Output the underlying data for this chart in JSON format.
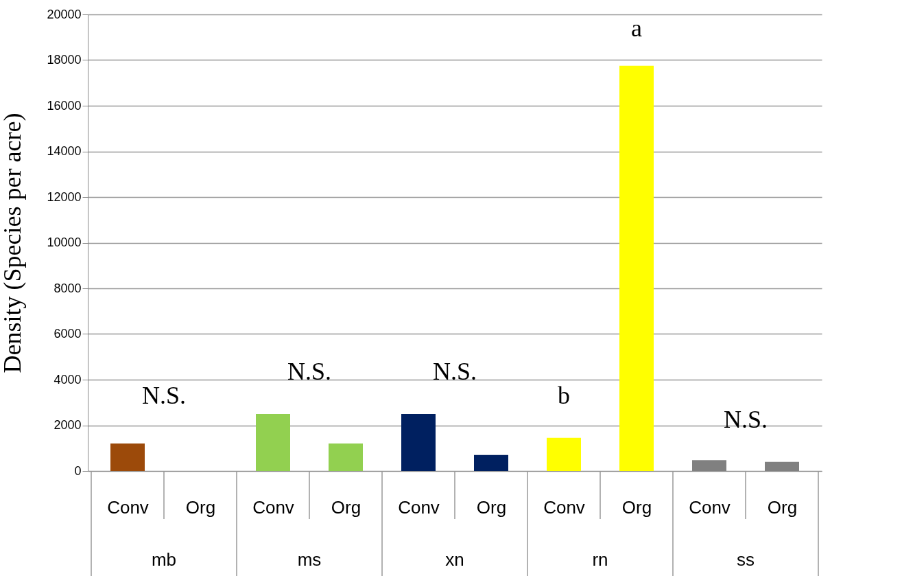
{
  "chart_data": {
    "type": "bar",
    "ylabel": "Density (Species per  acre)",
    "categories": [
      "Conv",
      "Org",
      "Conv",
      "Org",
      "Conv",
      "Org",
      "Conv",
      "Org",
      "Conv",
      "Org"
    ],
    "values": [
      1200,
      null,
      2500,
      1200,
      2500,
      700,
      1450,
      17750,
      470,
      400
    ],
    "colors": [
      "#9c4a0a",
      "#9c4a0a",
      "#92d050",
      "#92d050",
      "#002060",
      "#002060",
      "#ffff00",
      "#ffff00",
      "#808080",
      "#808080"
    ],
    "ylim": [
      0,
      20000
    ],
    "yticks": [
      0,
      2000,
      4000,
      6000,
      8000,
      10000,
      12000,
      14000,
      16000,
      18000,
      20000
    ],
    "grid": "y",
    "annotations": [
      "mb",
      "ms",
      "xn",
      "rn",
      "ss",
      "N.S.",
      "N.S.",
      "N.S.",
      "b",
      "a",
      "N.S."
    ]
  }
}
